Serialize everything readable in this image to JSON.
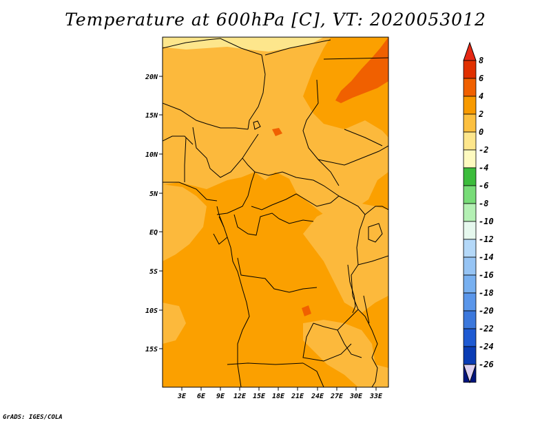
{
  "title": "Temperature at 600hPa [C], VT: 2020053012",
  "credit": "GrADS: IGES/COLA",
  "lat_labels": [
    "20N",
    "15N",
    "10N",
    "5N",
    "EQ",
    "5S",
    "10S",
    "15S"
  ],
  "lon_labels": [
    "3E",
    "6E",
    "9E",
    "12E",
    "15E",
    "18E",
    "21E",
    "24E",
    "27E",
    "30E",
    "33E"
  ],
  "colorbar": {
    "labels": [
      "8",
      "6",
      "4",
      "2",
      "0",
      "-2",
      "-4",
      "-6",
      "-8",
      "-10",
      "-12",
      "-14",
      "-16",
      "-18",
      "-20",
      "-22",
      "-24",
      "-26"
    ],
    "colors": [
      "#e03000",
      "#f06000",
      "#f89a00",
      "#fcc040",
      "#fde68c",
      "#fefac0",
      "#3cbc3c",
      "#78dc78",
      "#b4f0b4",
      "#e6f8ee",
      "#b4d8f8",
      "#96c4f4",
      "#78b0f0",
      "#5a96ea",
      "#3c78dc",
      "#1e5ad2",
      "#0a3cb4",
      "#00147d"
    ],
    "top_cap_color": "#e62814",
    "bottom_cap_color": "#dcd0f0"
  },
  "map_colors": {
    "base": "#fba000",
    "warm": "#fcb93c",
    "cool": "#fde68c",
    "hot": "#f06000"
  }
}
